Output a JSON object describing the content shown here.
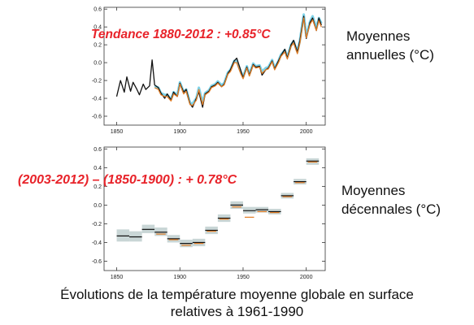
{
  "colors": {
    "observed": "#111111",
    "dataset_orange": "#e07b24",
    "dataset_cyan": "#7fd3e8",
    "uncertainty_box": "#c9d6d6",
    "annotation_red": "#e8232a"
  },
  "chart_data": [
    {
      "type": "line",
      "side_label": [
        "Moyennes",
        "annuelles (°C)"
      ],
      "annotation": "Tendance 1880-2012 : +0.85°C",
      "xlim": [
        1840,
        2015
      ],
      "ylim": [
        -0.7,
        0.62
      ],
      "xticks": [
        1850,
        1900,
        1950,
        2000
      ],
      "yticks": [
        -0.6,
        -0.4,
        -0.2,
        0.0,
        0.2,
        0.4,
        0.6
      ],
      "ytick_labels": [
        "-0.6",
        "-0.4",
        "-0.2",
        "0.0",
        "0.2",
        "0.4",
        "0.6"
      ],
      "grid": false,
      "series": [
        {
          "style": "black",
          "x": [
            1850,
            1853,
            1856,
            1858,
            1861,
            1863,
            1866,
            1868,
            1871,
            1873,
            1876,
            1878,
            1880,
            1883,
            1885,
            1888,
            1890,
            1893,
            1895,
            1898,
            1900,
            1903,
            1905,
            1908,
            1910,
            1913,
            1915,
            1918,
            1920,
            1923,
            1925,
            1928,
            1930,
            1933,
            1935,
            1938,
            1940,
            1943,
            1945,
            1948,
            1950,
            1953,
            1955,
            1958,
            1960,
            1963,
            1965,
            1968,
            1970,
            1973,
            1975,
            1978,
            1980,
            1983,
            1985,
            1988,
            1990,
            1993,
            1995,
            1998,
            2000,
            2003,
            2005,
            2008,
            2010,
            2012
          ],
          "y": [
            -0.38,
            -0.2,
            -0.33,
            -0.16,
            -0.32,
            -0.22,
            -0.3,
            -0.36,
            -0.24,
            -0.3,
            -0.26,
            0.03,
            -0.25,
            -0.28,
            -0.34,
            -0.4,
            -0.35,
            -0.42,
            -0.33,
            -0.38,
            -0.23,
            -0.33,
            -0.3,
            -0.46,
            -0.5,
            -0.4,
            -0.33,
            -0.5,
            -0.35,
            -0.32,
            -0.27,
            -0.25,
            -0.22,
            -0.27,
            -0.24,
            -0.12,
            -0.08,
            0.02,
            0.05,
            -0.08,
            -0.17,
            -0.05,
            -0.14,
            -0.02,
            -0.05,
            -0.04,
            -0.14,
            -0.08,
            -0.06,
            0.02,
            -0.07,
            0.02,
            0.08,
            0.15,
            0.05,
            0.2,
            0.25,
            0.12,
            0.25,
            0.52,
            0.27,
            0.45,
            0.5,
            0.36,
            0.5,
            0.42
          ]
        },
        {
          "style": "orange",
          "x": [
            1880,
            1883,
            1885,
            1888,
            1890,
            1893,
            1895,
            1898,
            1900,
            1903,
            1905,
            1908,
            1910,
            1913,
            1915,
            1918,
            1920,
            1923,
            1925,
            1928,
            1930,
            1933,
            1935,
            1938,
            1940,
            1943,
            1945,
            1948,
            1950,
            1953,
            1955,
            1958,
            1960,
            1963,
            1965,
            1968,
            1970,
            1973,
            1975,
            1978,
            1980,
            1983,
            1985,
            1988,
            1990,
            1993,
            1995,
            1998,
            2000,
            2003,
            2005,
            2008,
            2010,
            2012
          ],
          "y": [
            -0.28,
            -0.3,
            -0.36,
            -0.38,
            -0.38,
            -0.43,
            -0.35,
            -0.38,
            -0.24,
            -0.35,
            -0.32,
            -0.47,
            -0.48,
            -0.42,
            -0.3,
            -0.47,
            -0.36,
            -0.33,
            -0.28,
            -0.26,
            -0.23,
            -0.27,
            -0.25,
            -0.13,
            -0.1,
            0.0,
            0.0,
            -0.12,
            -0.18,
            -0.06,
            -0.15,
            -0.03,
            -0.06,
            -0.05,
            -0.12,
            -0.08,
            -0.07,
            0.01,
            -0.08,
            0.0,
            0.07,
            0.12,
            0.04,
            0.18,
            0.22,
            0.1,
            0.22,
            0.5,
            0.28,
            0.43,
            0.48,
            0.36,
            0.47,
            0.4
          ]
        },
        {
          "style": "cyan",
          "x": [
            1880,
            1883,
            1885,
            1888,
            1890,
            1893,
            1895,
            1898,
            1900,
            1903,
            1905,
            1908,
            1910,
            1913,
            1915,
            1918,
            1920,
            1923,
            1925,
            1928,
            1930,
            1933,
            1935,
            1938,
            1940,
            1943,
            1945,
            1948,
            1950,
            1953,
            1955,
            1958,
            1960,
            1963,
            1965,
            1968,
            1970,
            1973,
            1975,
            1978,
            1980,
            1983,
            1985,
            1988,
            1990,
            1993,
            1995,
            1998,
            2000,
            2003,
            2005,
            2008,
            2010,
            2012
          ],
          "y": [
            -0.26,
            -0.28,
            -0.34,
            -0.36,
            -0.36,
            -0.41,
            -0.33,
            -0.36,
            -0.22,
            -0.33,
            -0.3,
            -0.45,
            -0.46,
            -0.4,
            -0.28,
            -0.45,
            -0.34,
            -0.31,
            -0.26,
            -0.24,
            -0.21,
            -0.25,
            -0.23,
            -0.11,
            -0.08,
            0.02,
            0.02,
            -0.1,
            -0.16,
            -0.04,
            -0.13,
            -0.01,
            -0.04,
            -0.03,
            -0.1,
            -0.06,
            -0.05,
            0.03,
            -0.06,
            0.02,
            0.09,
            0.14,
            0.06,
            0.2,
            0.24,
            0.12,
            0.25,
            0.54,
            0.3,
            0.46,
            0.52,
            0.39,
            0.5,
            0.44
          ]
        }
      ]
    },
    {
      "type": "bar",
      "side_label": [
        "Moyennes",
        "décennales (°C)"
      ],
      "annotation": "(2003-2012) – (1850-1900) : + 0.78°C",
      "xlim": [
        1840,
        2015
      ],
      "ylim": [
        -0.7,
        0.62
      ],
      "xticks": [
        1850,
        1900,
        1950,
        2000
      ],
      "yticks": [
        -0.6,
        -0.4,
        -0.2,
        0.0,
        0.2,
        0.4,
        0.6
      ],
      "ytick_labels": [
        "-0.6",
        "-0.4",
        "-0.2",
        "0.0",
        "0.2",
        "0.4",
        "0.6"
      ],
      "grid": false,
      "decades": [
        {
          "start": 1850,
          "end": 1860,
          "value": -0.33,
          "low": -0.39,
          "high": -0.26,
          "orange": null
        },
        {
          "start": 1860,
          "end": 1870,
          "value": -0.34,
          "low": -0.39,
          "high": -0.28,
          "orange": null
        },
        {
          "start": 1870,
          "end": 1880,
          "value": -0.26,
          "low": -0.3,
          "high": -0.21,
          "orange": null
        },
        {
          "start": 1880,
          "end": 1890,
          "value": -0.29,
          "low": -0.33,
          "high": -0.24,
          "orange": -0.31
        },
        {
          "start": 1890,
          "end": 1900,
          "value": -0.36,
          "low": -0.4,
          "high": -0.32,
          "orange": -0.37
        },
        {
          "start": 1900,
          "end": 1910,
          "value": -0.41,
          "low": -0.45,
          "high": -0.37,
          "orange": -0.43
        },
        {
          "start": 1910,
          "end": 1920,
          "value": -0.4,
          "low": -0.44,
          "high": -0.36,
          "orange": -0.41
        },
        {
          "start": 1920,
          "end": 1930,
          "value": -0.27,
          "low": -0.31,
          "high": -0.23,
          "orange": -0.28
        },
        {
          "start": 1930,
          "end": 1940,
          "value": -0.14,
          "low": -0.18,
          "high": -0.1,
          "orange": -0.15
        },
        {
          "start": 1940,
          "end": 1950,
          "value": 0.0,
          "low": -0.04,
          "high": 0.04,
          "orange": -0.02
        },
        {
          "start": 1950,
          "end": 1960,
          "value": -0.06,
          "low": -0.09,
          "high": -0.02,
          "orange": -0.13
        },
        {
          "start": 1960,
          "end": 1970,
          "value": -0.05,
          "low": -0.08,
          "high": -0.02,
          "orange": -0.07
        },
        {
          "start": 1970,
          "end": 1980,
          "value": -0.07,
          "low": -0.1,
          "high": -0.04,
          "orange": -0.08
        },
        {
          "start": 1980,
          "end": 1990,
          "value": 0.1,
          "low": 0.07,
          "high": 0.13,
          "orange": 0.09
        },
        {
          "start": 1990,
          "end": 2000,
          "value": 0.25,
          "low": 0.22,
          "high": 0.28,
          "orange": 0.24
        },
        {
          "start": 2000,
          "end": 2010,
          "value": 0.47,
          "low": 0.43,
          "high": 0.5,
          "orange": 0.46
        }
      ]
    }
  ],
  "caption": {
    "line1": "Évolutions de la température moyenne globale en surface",
    "line2": "relatives à 1961-1990"
  }
}
